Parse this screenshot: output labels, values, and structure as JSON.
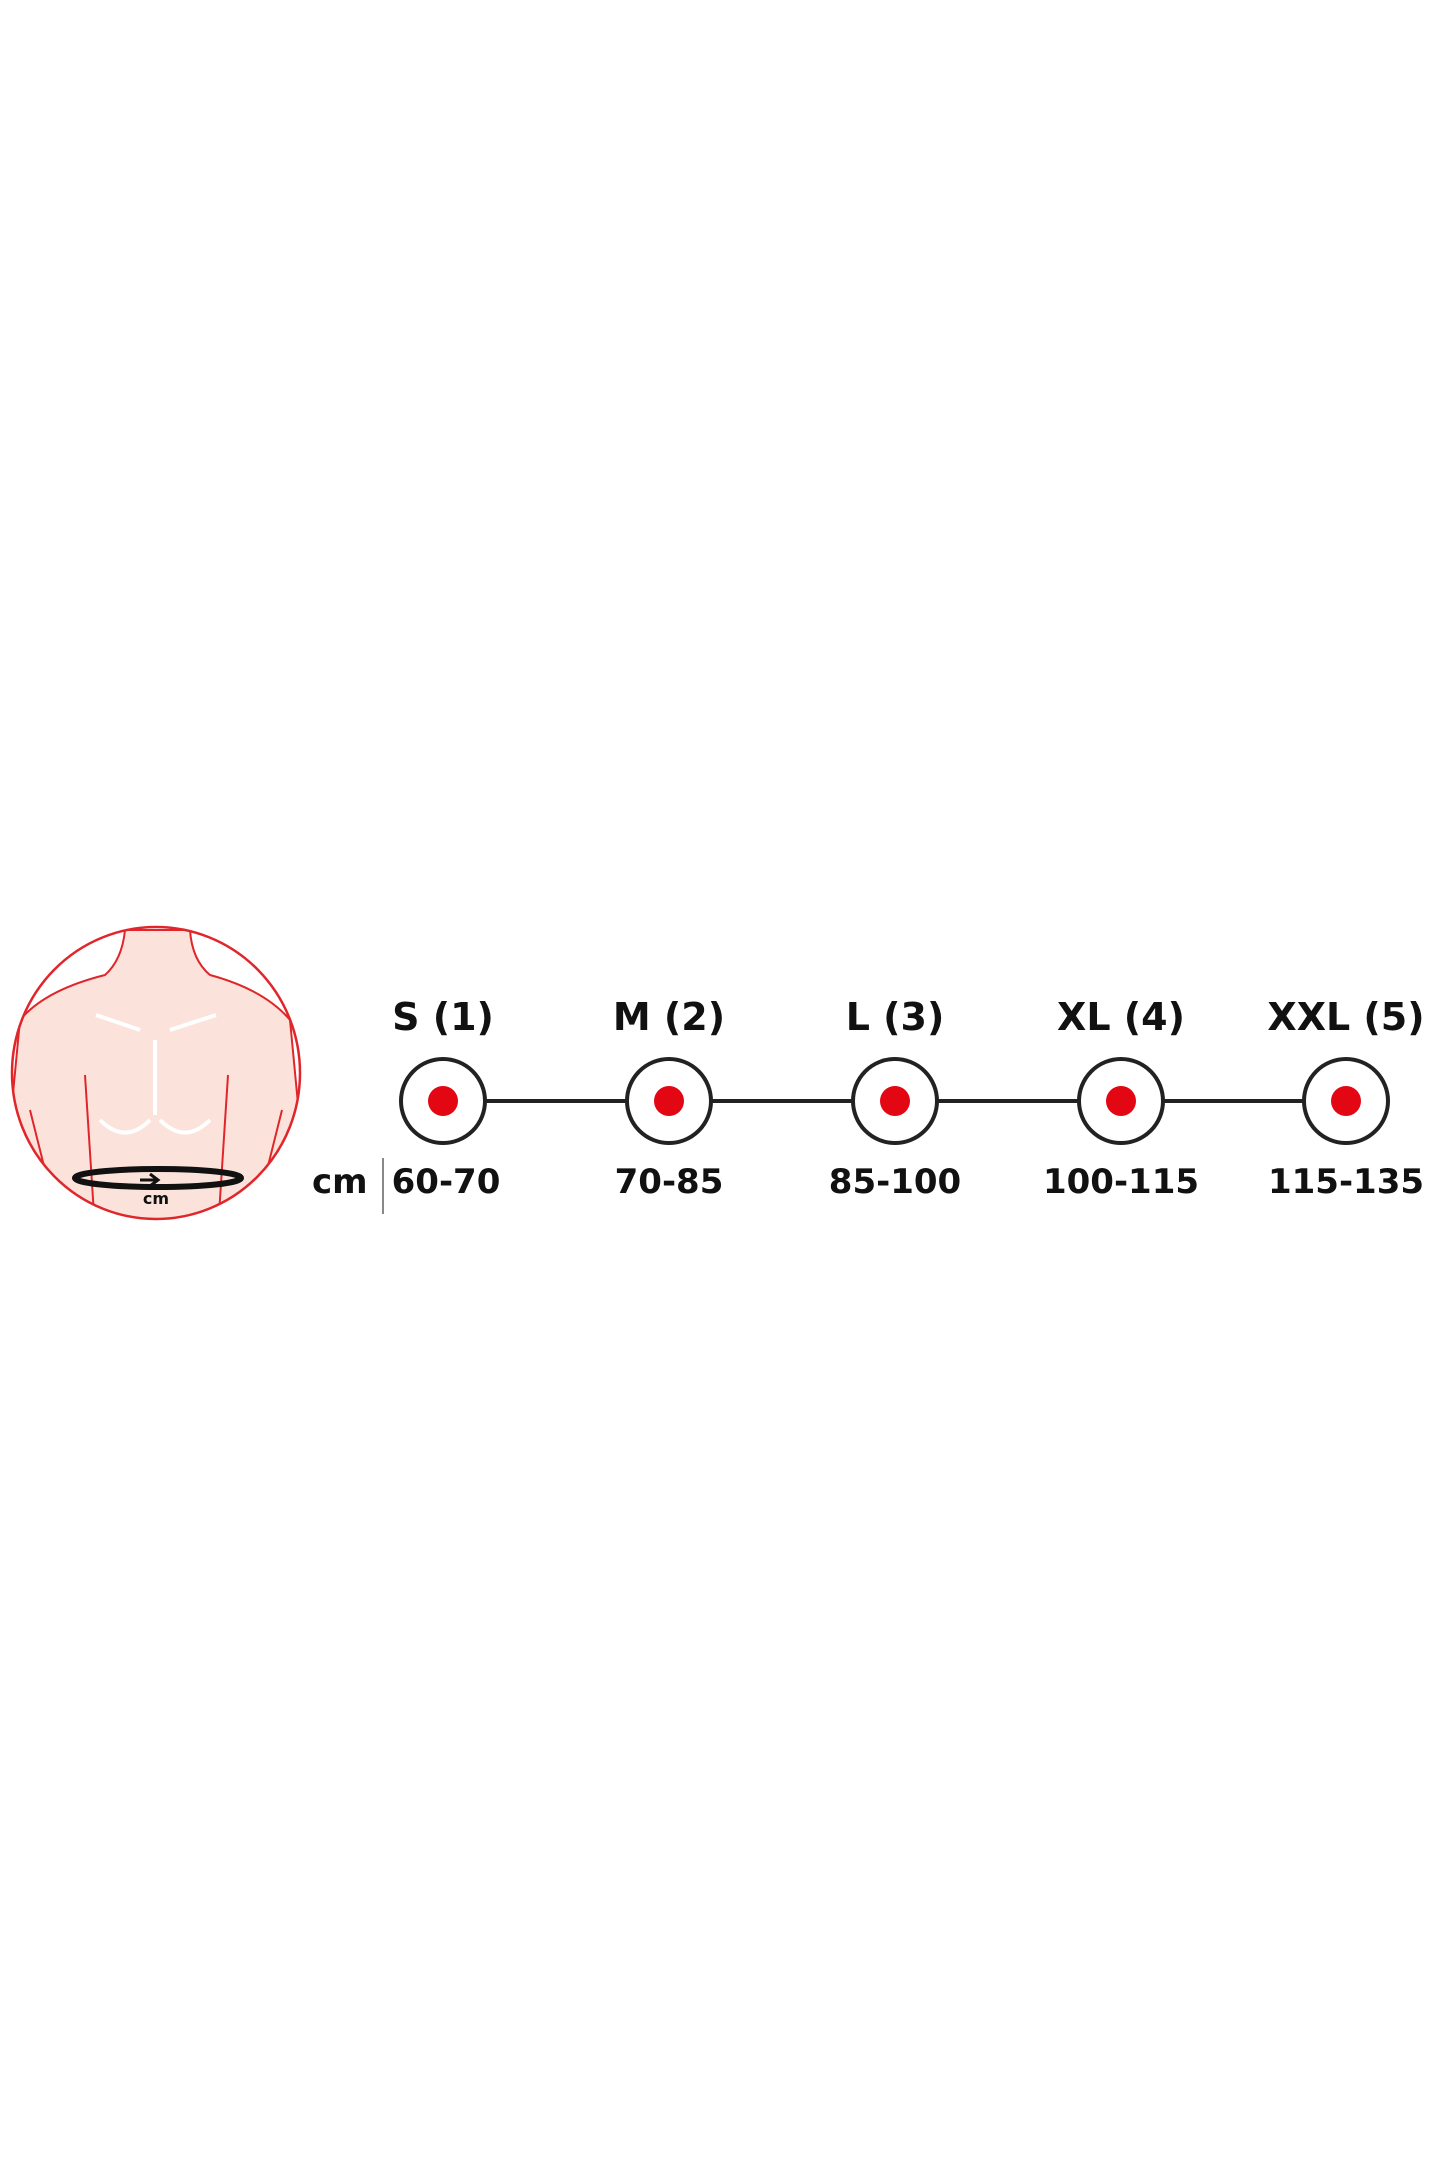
{
  "figure": {
    "icon": "torso-waist-measurement-icon",
    "waist_label": "cm"
  },
  "unit_label": "cm",
  "sizes": [
    {
      "label": "S (1)",
      "range": "60-70"
    },
    {
      "label": "M (2)",
      "range": "70-85"
    },
    {
      "label": "L (3)",
      "range": "85-100"
    },
    {
      "label": "XL (4)",
      "range": "100-115"
    },
    {
      "label": "XXL (5)",
      "range": "115-135"
    }
  ],
  "colors": {
    "accent": "#e30613",
    "skin": "#fbe3db",
    "outline": "#e0262b",
    "line": "#222222"
  }
}
